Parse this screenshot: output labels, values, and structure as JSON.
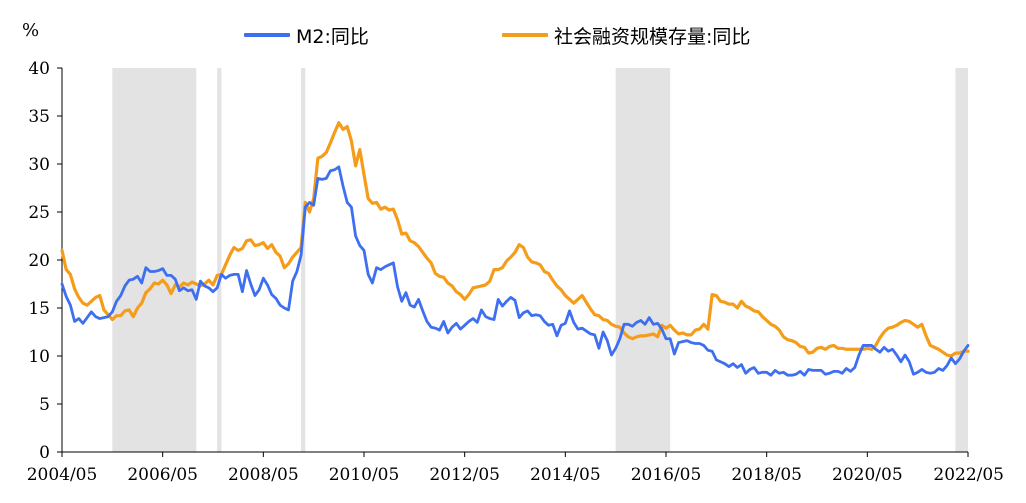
{
  "chart_data": {
    "type": "line",
    "title": "",
    "xlabel": "",
    "ylabel": "%",
    "ylim": [
      0,
      40
    ],
    "yticks": [
      0,
      5,
      10,
      15,
      20,
      25,
      30,
      35,
      40
    ],
    "x_start": "2004-05",
    "x_end": "2022-05",
    "x_frequency": "monthly",
    "x_tick_labels": [
      "2004/05",
      "2006/05",
      "2008/05",
      "2010/05",
      "2012/05",
      "2014/05",
      "2016/05",
      "2018/05",
      "2020/05",
      "2022/05"
    ],
    "grid": false,
    "legend_position": "top-center",
    "shaded_periods": [
      {
        "start": "2005-05",
        "end": "2007-01"
      },
      {
        "start": "2007-06",
        "end": "2007-07"
      },
      {
        "start": "2009-02",
        "end": "2009-03"
      },
      {
        "start": "2015-05",
        "end": "2016-06"
      },
      {
        "start": "2022-02",
        "end": "2022-05"
      }
    ],
    "shade_color": "#e3e3e3",
    "series": [
      {
        "name": "M2:同比",
        "color": "#3d6ff0",
        "values": [
          17.5,
          16.2,
          15.3,
          13.6,
          13.9,
          13.4,
          14.0,
          14.6,
          14.1,
          13.9,
          14.0,
          14.1,
          14.6,
          15.7,
          16.3,
          17.3,
          17.9,
          18.0,
          18.3,
          17.6,
          19.2,
          18.8,
          18.8,
          18.9,
          19.1,
          18.4,
          18.4,
          18.0,
          16.8,
          17.1,
          16.8,
          16.9,
          15.9,
          17.8,
          17.3,
          17.1,
          16.7,
          17.1,
          18.5,
          18.1,
          18.4,
          18.5,
          18.5,
          16.7,
          18.9,
          17.5,
          16.3,
          16.9,
          18.1,
          17.4,
          16.4,
          16.0,
          15.3,
          15.0,
          14.8,
          17.8,
          18.8,
          20.5,
          25.5,
          26.0,
          25.7,
          28.5,
          28.4,
          28.5,
          29.3,
          29.4,
          29.7,
          27.7,
          26.0,
          25.5,
          22.5,
          21.5,
          21.0,
          18.5,
          17.6,
          19.2,
          19.0,
          19.3,
          19.5,
          19.7,
          17.2,
          15.7,
          16.6,
          15.3,
          15.1,
          15.9,
          14.7,
          13.6,
          13.0,
          12.9,
          12.7,
          13.6,
          12.4,
          13.0,
          13.4,
          12.8,
          13.2,
          13.6,
          13.9,
          13.5,
          14.8,
          14.1,
          13.9,
          13.8,
          15.9,
          15.2,
          15.7,
          16.1,
          15.8,
          14.0,
          14.5,
          14.7,
          14.2,
          14.3,
          14.2,
          13.6,
          13.2,
          13.3,
          12.1,
          13.2,
          13.4,
          14.7,
          13.5,
          12.8,
          12.9,
          12.6,
          12.3,
          12.2,
          10.8,
          12.5,
          11.6,
          10.1,
          10.8,
          11.8,
          13.3,
          13.3,
          13.1,
          13.5,
          13.7,
          13.3,
          14.0,
          13.3,
          13.4,
          12.8,
          11.8,
          11.8,
          10.2,
          11.4,
          11.5,
          11.6,
          11.4,
          11.3,
          11.3,
          11.1,
          10.6,
          10.5,
          9.6,
          9.4,
          9.2,
          8.9,
          9.2,
          8.8,
          9.1,
          8.2,
          8.6,
          8.8,
          8.2,
          8.3,
          8.3,
          8.0,
          8.5,
          8.2,
          8.3,
          8.0,
          8.0,
          8.1,
          8.4,
          8.0,
          8.6,
          8.5,
          8.5,
          8.5,
          8.1,
          8.2,
          8.4,
          8.4,
          8.2,
          8.7,
          8.4,
          8.8,
          10.1,
          11.1,
          11.1,
          11.1,
          10.7,
          10.4,
          10.9,
          10.5,
          10.7,
          10.1,
          9.4,
          10.1,
          9.4,
          8.1,
          8.3,
          8.6,
          8.3,
          8.2,
          8.3,
          8.7,
          8.5,
          9.0,
          9.8,
          9.2,
          9.7,
          10.5,
          11.1
        ]
      },
      {
        "name": "社会融资规模存量:同比",
        "color": "#f59c1a",
        "values": [
          21.0,
          19.0,
          18.5,
          17.0,
          16.1,
          15.5,
          15.3,
          15.7,
          16.1,
          16.3,
          14.8,
          14.3,
          13.8,
          14.2,
          14.2,
          14.7,
          14.8,
          14.1,
          15.0,
          15.5,
          16.6,
          17.0,
          17.6,
          17.5,
          17.9,
          17.4,
          16.5,
          17.4,
          17.2,
          17.6,
          17.4,
          17.7,
          17.5,
          17.3,
          17.5,
          17.9,
          17.4,
          18.4,
          18.5,
          19.5,
          20.5,
          21.3,
          21.0,
          21.2,
          22.0,
          22.1,
          21.5,
          21.6,
          21.8,
          21.2,
          21.6,
          20.8,
          20.4,
          19.2,
          19.6,
          20.3,
          20.8,
          21.3,
          26.0,
          25.0,
          26.4,
          30.6,
          30.8,
          31.2,
          32.2,
          33.3,
          34.3,
          33.6,
          33.9,
          32.4,
          29.8,
          31.5,
          28.9,
          26.4,
          25.9,
          26.0,
          25.3,
          25.5,
          25.2,
          25.3,
          24.2,
          22.7,
          22.8,
          22.0,
          21.8,
          21.4,
          20.8,
          20.2,
          19.7,
          18.6,
          18.3,
          18.2,
          17.6,
          17.3,
          16.7,
          16.4,
          15.9,
          16.4,
          17.1,
          17.2,
          17.3,
          17.4,
          17.8,
          19.0,
          19.0,
          19.2,
          19.9,
          20.3,
          20.8,
          21.6,
          21.3,
          20.3,
          19.8,
          19.7,
          19.5,
          18.8,
          18.6,
          17.9,
          17.3,
          16.9,
          16.3,
          15.9,
          15.5,
          15.9,
          16.3,
          15.6,
          14.9,
          14.3,
          14.2,
          13.8,
          13.7,
          13.3,
          13.1,
          13.0,
          12.4,
          12.0,
          11.8,
          12.0,
          12.1,
          12.1,
          12.2,
          12.3,
          12.0,
          13.2,
          12.9,
          13.2,
          12.7,
          12.3,
          12.4,
          12.2,
          12.2,
          12.7,
          12.8,
          13.3,
          12.8,
          16.4,
          16.3,
          15.7,
          15.6,
          15.4,
          15.4,
          15.0,
          15.7,
          15.2,
          15.0,
          14.7,
          14.6,
          14.1,
          13.7,
          13.3,
          13.1,
          12.7,
          12.0,
          11.7,
          11.6,
          11.4,
          11.0,
          10.9,
          10.3,
          10.4,
          10.8,
          10.9,
          10.7,
          11.0,
          11.1,
          10.8,
          10.8,
          10.7,
          10.7,
          10.7,
          10.7,
          10.7,
          10.8,
          10.7,
          11.1,
          11.9,
          12.5,
          12.9,
          13.0,
          13.2,
          13.5,
          13.7,
          13.6,
          13.3,
          13.0,
          13.3,
          12.1,
          11.1,
          10.9,
          10.7,
          10.4,
          10.1,
          10.0,
          10.3,
          10.3,
          10.5,
          10.5
        ]
      }
    ]
  }
}
